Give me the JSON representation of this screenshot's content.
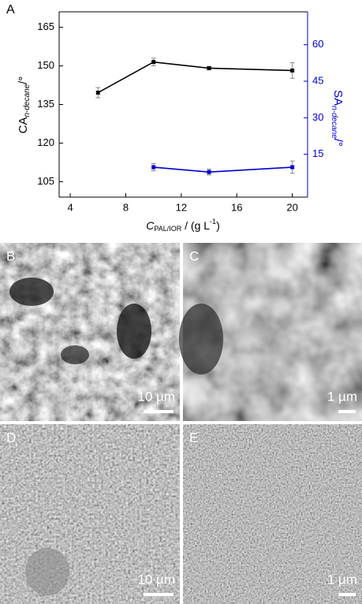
{
  "chart_data": {
    "type": "line",
    "panel_label": "A",
    "ylabel": [
      "CA",
      "n-decane",
      "/°"
    ],
    "y2label": [
      "SA",
      "n-decane",
      "/°"
    ],
    "xlabel": [
      "C",
      "PAL/IOR",
      " / (g L",
      "-1",
      ")"
    ],
    "xlim": [
      3.2,
      21.1
    ],
    "xticks": [
      4,
      8,
      12,
      16,
      20
    ],
    "ylim": [
      99,
      171
    ],
    "yticks": [
      105,
      120,
      135,
      150,
      165
    ],
    "y2lim": [
      -2.6,
      73.5
    ],
    "y2ticks": [
      15,
      30,
      45,
      60
    ],
    "series": [
      {
        "color": "#000000",
        "x": [
          6,
          10,
          14,
          20
        ],
        "values": [
          139.6,
          151.5,
          149.1,
          148.2
        ],
        "errors": [
          2,
          1.5,
          0.6,
          3
        ]
      },
      {
        "color": "#0000cc",
        "axis": "y2",
        "x": [
          10,
          14,
          20
        ],
        "values": [
          9.7,
          7.7,
          9.7
        ],
        "errors": [
          1.5,
          1.2,
          2.5
        ]
      }
    ]
  },
  "panels": [
    {
      "label": "B",
      "scale": "10 µm"
    },
    {
      "label": "C",
      "scale": "1 µm"
    },
    {
      "label": "D",
      "scale": "10 µm"
    },
    {
      "label": "E",
      "scale": "1 µm"
    }
  ]
}
